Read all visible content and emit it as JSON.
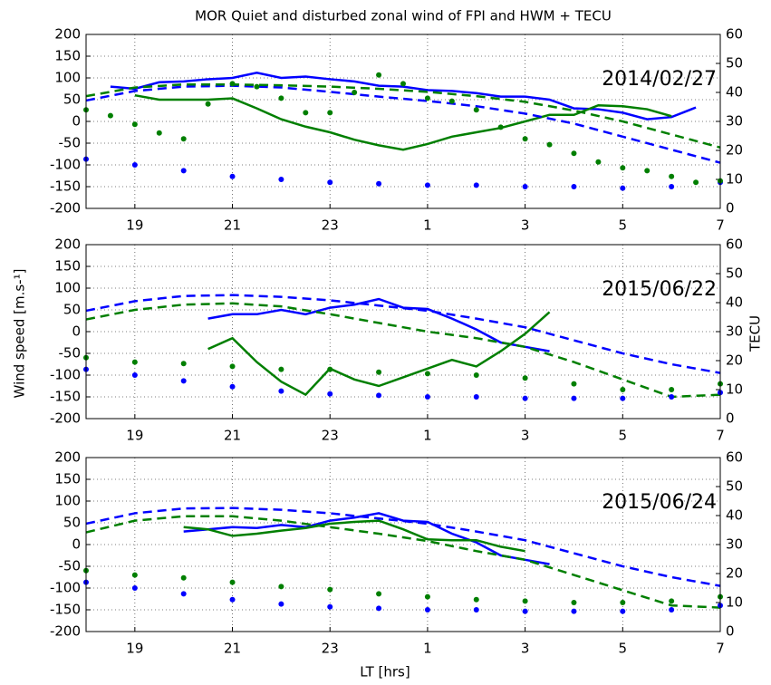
{
  "figure": {
    "title": "MOR Quiet and disturbed zonal wind of FPI and HWM + TECU",
    "xlabel": "LT [hrs]",
    "ylabel": "Wind speed [m.s-¹]",
    "y2label": "TECU"
  },
  "chart_data": [
    {
      "type": "line",
      "annotation": "2014/02/27",
      "grid": true,
      "xlim": [
        18,
        31
      ],
      "xticks": [
        19,
        21,
        23,
        {
          "value": 25,
          "label": "1"
        },
        {
          "value": 27,
          "label": "3"
        },
        {
          "value": 29,
          "label": "5"
        },
        {
          "value": 31,
          "label": "7"
        }
      ],
      "ylim": [
        -200,
        200
      ],
      "yticks": [
        -200,
        -150,
        -100,
        -50,
        0,
        50,
        100,
        150,
        200
      ],
      "y2lim": [
        0,
        60
      ],
      "y2ticks": [
        0,
        10,
        20,
        30,
        40,
        50,
        60
      ],
      "series": [
        {
          "color": "#0000ff",
          "style": "solid",
          "x": [
            18.5,
            19,
            19.5,
            20,
            20.5,
            21,
            21.5,
            22,
            22.5,
            23,
            23.5,
            24,
            24.5,
            25,
            25.5,
            26,
            26.5,
            27,
            27.5,
            28,
            28.5,
            29,
            29.5,
            30,
            30.5
          ],
          "values": [
            80,
            75,
            90,
            92,
            97,
            100,
            112,
            100,
            103,
            97,
            92,
            82,
            80,
            72,
            70,
            65,
            57,
            57,
            50,
            30,
            28,
            20,
            5,
            10,
            32
          ]
        },
        {
          "color": "#007f00",
          "style": "solid",
          "x": [
            19,
            19.5,
            20,
            20.5,
            21,
            21.5,
            22,
            22.5,
            23,
            23.5,
            24,
            24.5,
            25,
            25.5,
            26,
            26.5,
            27,
            27.5,
            28,
            28.5,
            29,
            29.5,
            30
          ],
          "values": [
            60,
            50,
            50,
            50,
            53,
            30,
            5,
            -12,
            -25,
            -42,
            -55,
            -65,
            -52,
            -35,
            -25,
            -15,
            0,
            15,
            15,
            37,
            35,
            28,
            12
          ]
        },
        {
          "color": "#0000ff",
          "style": "dashed",
          "x": [
            18,
            19,
            20,
            21,
            22,
            23,
            24,
            25,
            26,
            27,
            28,
            29,
            30,
            31
          ],
          "values": [
            48,
            70,
            80,
            82,
            78,
            68,
            57,
            47,
            35,
            18,
            -5,
            -35,
            -65,
            -95
          ]
        },
        {
          "color": "#007f00",
          "style": "dashed",
          "x": [
            18,
            19,
            20,
            21,
            22,
            23,
            24,
            25,
            26,
            27,
            28,
            29,
            30,
            31
          ],
          "values": [
            58,
            78,
            85,
            85,
            83,
            80,
            75,
            68,
            58,
            45,
            25,
            0,
            -30,
            -60
          ]
        },
        {
          "color": "#0000ff",
          "style": "dotted",
          "axis": "y2",
          "x": [
            18,
            19,
            20,
            21,
            22,
            23,
            24,
            25,
            26,
            27,
            28,
            29,
            30,
            31
          ],
          "values": [
            17,
            15,
            13,
            11,
            10,
            9,
            8.5,
            8,
            8,
            7.5,
            7.5,
            7,
            7.5,
            9
          ]
        },
        {
          "color": "#007f00",
          "style": "dotted",
          "axis": "y2",
          "x": [
            18,
            18.5,
            19,
            19.5,
            20,
            20.5,
            21,
            21.5,
            22,
            22.5,
            23,
            23.5,
            24,
            24.5,
            25,
            25.5,
            26,
            26.5,
            27,
            27.5,
            28,
            28.5,
            29,
            29.5,
            30,
            30.5,
            31
          ],
          "values": [
            34,
            32,
            29,
            26,
            24,
            36,
            43,
            42,
            38,
            33,
            33,
            40,
            46,
            43,
            38,
            37,
            34,
            28,
            24,
            22,
            19,
            16,
            14,
            13,
            11,
            9,
            9.5
          ]
        }
      ]
    },
    {
      "type": "line",
      "annotation": "2015/06/22",
      "grid": true,
      "xlim": [
        18,
        31
      ],
      "xticks": [
        19,
        21,
        23,
        {
          "value": 25,
          "label": "1"
        },
        {
          "value": 27,
          "label": "3"
        },
        {
          "value": 29,
          "label": "5"
        },
        {
          "value": 31,
          "label": "7"
        }
      ],
      "ylim": [
        -200,
        200
      ],
      "yticks": [
        -200,
        -150,
        -100,
        -50,
        0,
        50,
        100,
        150,
        200
      ],
      "y2lim": [
        0,
        60
      ],
      "y2ticks": [
        0,
        10,
        20,
        30,
        40,
        50,
        60
      ],
      "series": [
        {
          "color": "#0000ff",
          "style": "solid",
          "x": [
            20.5,
            21,
            21.5,
            22,
            22.5,
            23,
            23.5,
            24,
            24.5,
            25,
            25.5,
            26,
            26.5,
            27,
            27.5
          ],
          "values": [
            30,
            40,
            40,
            50,
            40,
            55,
            62,
            75,
            55,
            52,
            30,
            5,
            -25,
            -35,
            -45
          ]
        },
        {
          "color": "#007f00",
          "style": "solid",
          "x": [
            20.5,
            21,
            21.5,
            22,
            22.5,
            23,
            23.5,
            24,
            24.5,
            25,
            25.5,
            26,
            26.5,
            27,
            27.5
          ],
          "values": [
            -40,
            -15,
            -70,
            -115,
            -145,
            -85,
            -110,
            -125,
            -105,
            -85,
            -65,
            -80,
            -45,
            -5,
            45
          ]
        },
        {
          "color": "#0000ff",
          "style": "dashed",
          "x": [
            18,
            19,
            20,
            21,
            22,
            23,
            24,
            25,
            26,
            27,
            28,
            29,
            30,
            31
          ],
          "values": [
            48,
            70,
            82,
            84,
            80,
            72,
            60,
            48,
            30,
            10,
            -20,
            -50,
            -75,
            -95
          ]
        },
        {
          "color": "#007f00",
          "style": "dashed",
          "x": [
            18,
            19,
            20,
            21,
            22,
            23,
            24,
            25,
            26,
            27,
            28,
            29,
            30,
            31
          ],
          "values": [
            28,
            50,
            62,
            65,
            58,
            40,
            20,
            0,
            -15,
            -35,
            -70,
            -110,
            -150,
            -145
          ]
        },
        {
          "color": "#0000ff",
          "style": "dotted",
          "axis": "y2",
          "x": [
            18,
            19,
            20,
            21,
            22,
            23,
            24,
            25,
            26,
            27,
            28,
            29,
            30,
            31
          ],
          "values": [
            17,
            15,
            13,
            11,
            9.5,
            8.5,
            8,
            7.5,
            7.5,
            7,
            7,
            7,
            7.5,
            9
          ]
        },
        {
          "color": "#007f00",
          "style": "dotted",
          "axis": "y2",
          "x": [
            18,
            19,
            20,
            21,
            22,
            23,
            24,
            25,
            26,
            27,
            28,
            29,
            30,
            31
          ],
          "values": [
            21,
            19.5,
            19,
            18,
            17,
            17,
            16,
            15.5,
            15,
            14,
            12,
            10,
            10,
            12
          ]
        }
      ]
    },
    {
      "type": "line",
      "annotation": "2015/06/24",
      "grid": true,
      "xlim": [
        18,
        31
      ],
      "xticks": [
        19,
        21,
        23,
        {
          "value": 25,
          "label": "1"
        },
        {
          "value": 27,
          "label": "3"
        },
        {
          "value": 29,
          "label": "5"
        },
        {
          "value": 31,
          "label": "7"
        }
      ],
      "ylim": [
        -200,
        200
      ],
      "yticks": [
        -200,
        -150,
        -100,
        -50,
        0,
        50,
        100,
        150,
        200
      ],
      "y2lim": [
        0,
        60
      ],
      "y2ticks": [
        0,
        10,
        20,
        30,
        40,
        50,
        60
      ],
      "series": [
        {
          "color": "#0000ff",
          "style": "solid",
          "x": [
            20,
            20.5,
            21,
            21.5,
            22,
            22.5,
            23,
            23.5,
            24,
            24.5,
            25,
            25.5,
            26,
            26.5,
            27,
            27.5
          ],
          "values": [
            30,
            35,
            40,
            38,
            45,
            40,
            55,
            62,
            72,
            55,
            52,
            25,
            5,
            -25,
            -35,
            -45
          ]
        },
        {
          "color": "#007f00",
          "style": "solid",
          "x": [
            20,
            20.5,
            21,
            21.5,
            22,
            22.5,
            23,
            23.5,
            24,
            24.5,
            25,
            25.5,
            26,
            26.5,
            27
          ],
          "values": [
            40,
            35,
            20,
            25,
            32,
            38,
            48,
            52,
            55,
            35,
            12,
            10,
            10,
            -5,
            -15
          ]
        },
        {
          "color": "#0000ff",
          "style": "dashed",
          "x": [
            18,
            19,
            20,
            21,
            22,
            23,
            24,
            25,
            26,
            27,
            28,
            29,
            30,
            31
          ],
          "values": [
            48,
            72,
            83,
            84,
            80,
            72,
            60,
            48,
            30,
            10,
            -20,
            -50,
            -75,
            -95
          ]
        },
        {
          "color": "#007f00",
          "style": "dashed",
          "x": [
            18,
            19,
            20,
            21,
            22,
            23,
            24,
            25,
            26,
            27,
            28,
            29,
            30,
            31
          ],
          "values": [
            28,
            55,
            65,
            65,
            55,
            40,
            25,
            8,
            -15,
            -35,
            -70,
            -105,
            -140,
            -145
          ]
        },
        {
          "color": "#0000ff",
          "style": "dotted",
          "axis": "y2",
          "x": [
            18,
            19,
            20,
            21,
            22,
            23,
            24,
            25,
            26,
            27,
            28,
            29,
            30,
            31
          ],
          "values": [
            17,
            15,
            13,
            11,
            9.5,
            8.5,
            8,
            7.5,
            7.5,
            7,
            7,
            7,
            7.5,
            9
          ]
        },
        {
          "color": "#007f00",
          "style": "dotted",
          "axis": "y2",
          "x": [
            18,
            19,
            20,
            21,
            22,
            23,
            24,
            25,
            26,
            27,
            28,
            29,
            30,
            31
          ],
          "values": [
            21,
            19.5,
            18.5,
            17,
            15.5,
            14.5,
            13,
            12,
            11,
            10.5,
            10,
            10,
            10.5,
            12
          ]
        }
      ]
    }
  ]
}
